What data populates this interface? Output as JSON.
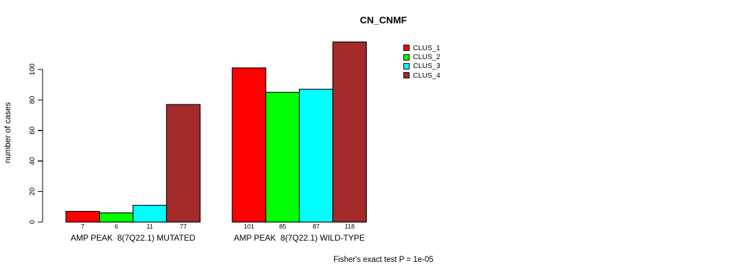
{
  "chart_data": {
    "type": "bar",
    "title": "CN_CNMF",
    "ylabel": "number of cases",
    "xlabel": "",
    "yticks": [
      0,
      20,
      40,
      60,
      80,
      100
    ],
    "ylim": [
      0,
      120
    ],
    "grid": false,
    "legend_position": "top-right",
    "categories": [
      "AMP PEAK  8(7Q22.1) MUTATED",
      "AMP PEAK  8(7Q22.1) WILD-TYPE"
    ],
    "series": [
      {
        "name": "CLUS_1",
        "color": "#FF0000",
        "values": [
          7,
          101
        ]
      },
      {
        "name": "CLUS_2",
        "color": "#00FF00",
        "values": [
          6,
          85
        ]
      },
      {
        "name": "CLUS_3",
        "color": "#00FFFF",
        "values": [
          11,
          87
        ]
      },
      {
        "name": "CLUS_4",
        "color": "#A52A2A",
        "values": [
          77,
          118
        ]
      }
    ],
    "bar_value_labels": [
      [
        "7",
        "6",
        "11",
        "77"
      ],
      [
        "101",
        "85",
        "87",
        "118"
      ]
    ],
    "annotation": "Fisher's exact test P = 1e-05"
  }
}
